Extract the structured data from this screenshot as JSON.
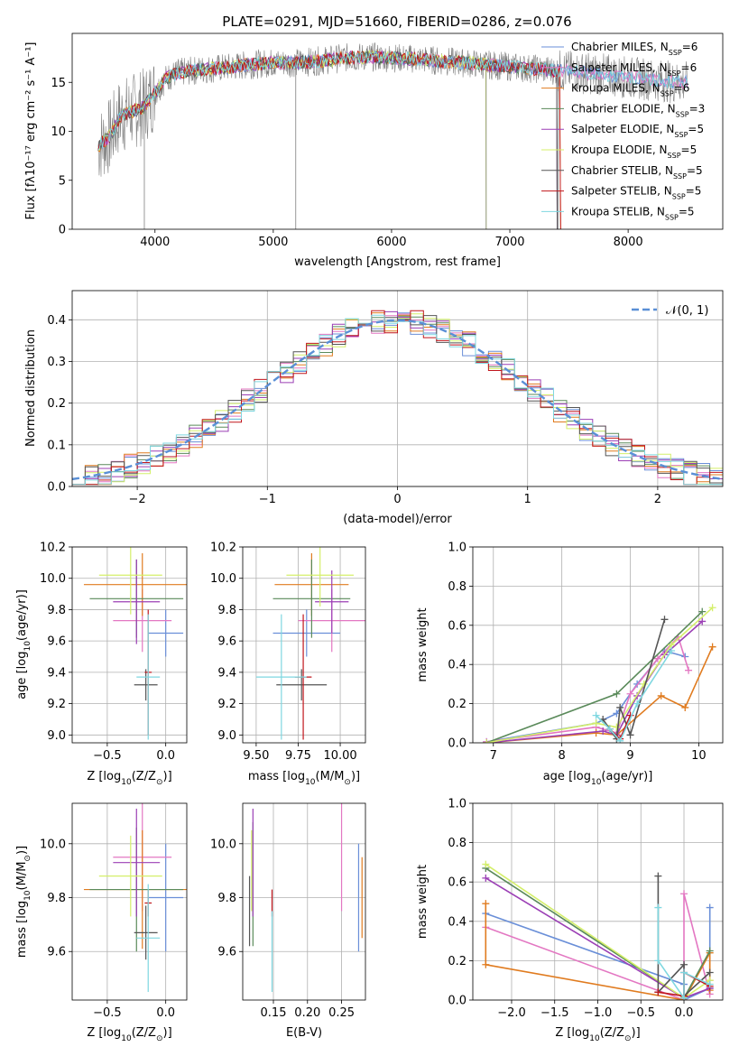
{
  "title": "PLATE=0291, MJD=51660, FIBERID=0286, z=0.076",
  "colors": {
    "chab_miles": "#6a8fd8",
    "salp_miles": "#e377c2",
    "krou_miles": "#e07b1f",
    "chab_elodie": "#5a8a5a",
    "salp_elodie": "#9b3fb5",
    "krou_elodie": "#d4ef6a",
    "chab_stelib": "#555555",
    "salp_stelib": "#c0161c",
    "krou_stelib": "#7fd7e0",
    "gauss": "#5a8fd6",
    "data": "#808080"
  },
  "chart_data": [
    {
      "id": "spectrum",
      "type": "line",
      "xlabel": "wavelength [Angstrom, rest frame]",
      "ylabel": "Flux [fλ10⁻¹⁷ erg cm⁻² s⁻¹ A⁻¹]",
      "xlim": [
        3300,
        8800
      ],
      "ylim": [
        0,
        20
      ],
      "xticks": [
        "4000",
        "5000",
        "6000",
        "7000",
        "8000"
      ],
      "yticks": [
        "0",
        "5",
        "10",
        "15"
      ],
      "legend": [
        "Chabrier MILES, N_SSP=6",
        "Salpeter MILES, N_SSP=6",
        "Kroupa MILES, N_SSP=6",
        "Chabrier ELODIE, N_SSP=3",
        "Salpeter ELODIE, N_SSP=5",
        "Kroupa ELODIE, N_SSP=5",
        "Chabrier STELIB, N_SSP=5",
        "Salpeter STELIB, N_SSP=5",
        "Kroupa STELIB, N_SSP=5"
      ],
      "legend_display": [
        {
          "pre": "Chabrier MILES, N",
          "sub": "SSP",
          "post": "=6"
        },
        {
          "pre": "Salpeter MILES, N",
          "sub": "SSP",
          "post": "=6"
        },
        {
          "pre": "Kroupa MILES, N",
          "sub": "SSP",
          "post": "=6"
        },
        {
          "pre": "Chabrier ELODIE, N",
          "sub": "SSP",
          "post": "=3"
        },
        {
          "pre": "Salpeter ELODIE, N",
          "sub": "SSP",
          "post": "=5"
        },
        {
          "pre": "Kroupa ELODIE, N",
          "sub": "SSP",
          "post": "=5"
        },
        {
          "pre": "Chabrier STELIB, N",
          "sub": "SSP",
          "post": "=5"
        },
        {
          "pre": "Salpeter STELIB, N",
          "sub": "SSP",
          "post": "=5"
        },
        {
          "pre": "Kroupa STELIB, N",
          "sub": "SSP",
          "post": "=5"
        }
      ],
      "legend_position": "right",
      "continuum": [
        [
          3520,
          8.5
        ],
        [
          3620,
          9.5
        ],
        [
          3700,
          11.5
        ],
        [
          3800,
          12.0
        ],
        [
          3900,
          12.5
        ],
        [
          4000,
          14.0
        ],
        [
          4100,
          15.5
        ],
        [
          4200,
          16.0
        ],
        [
          4400,
          16.3
        ],
        [
          4600,
          16.5
        ],
        [
          4800,
          16.8
        ],
        [
          5000,
          17.0
        ],
        [
          5200,
          17.0
        ],
        [
          5400,
          17.2
        ],
        [
          5600,
          17.5
        ],
        [
          5800,
          17.6
        ],
        [
          6000,
          17.5
        ],
        [
          6200,
          17.4
        ],
        [
          6400,
          17.2
        ],
        [
          6600,
          17.0
        ],
        [
          6800,
          16.8
        ],
        [
          7000,
          16.6
        ],
        [
          7200,
          16.4
        ],
        [
          7400,
          16.2
        ],
        [
          7600,
          16.0
        ],
        [
          7800,
          15.8
        ],
        [
          8000,
          15.5
        ],
        [
          8200,
          15.3
        ],
        [
          8400,
          15.0
        ],
        [
          8500,
          15.0
        ]
      ]
    },
    {
      "id": "residuals",
      "type": "line",
      "xlabel": "(data-model)/error",
      "ylabel": "Normed distribution",
      "xlim": [
        -2.5,
        2.5
      ],
      "ylim": [
        0,
        0.47
      ],
      "xticks": [
        -2,
        -1,
        0,
        1,
        2
      ],
      "xtick_labels": [
        "−2",
        "−1",
        "0",
        "1",
        "2"
      ],
      "yticks": [
        0.0,
        0.1,
        0.2,
        0.3,
        0.4
      ],
      "ytick_labels": [
        "0.0",
        "0.1",
        "0.2",
        "0.3",
        "0.4"
      ],
      "grid": true,
      "legend": [
        "𝒩(0, 1)"
      ],
      "legend_position": "top-right"
    },
    {
      "id": "age_vs_Z",
      "type": "scatter",
      "xlabel_parts": [
        "Z [log",
        "10",
        "(Z/Z",
        "⊙",
        ")]"
      ],
      "ylabel_parts": [
        "age  [log",
        "10",
        "(age/yr)]"
      ],
      "xlim": [
        -0.8,
        0.18
      ],
      "ylim": [
        8.95,
        10.2
      ],
      "xticks": [
        -0.5,
        0.0
      ],
      "xtick_labels": [
        "−0.5",
        "0.0"
      ],
      "yticks": [
        9.0,
        9.2,
        9.4,
        9.6,
        9.8,
        10.0,
        10.2
      ],
      "ytick_labels": [
        "9.0",
        "9.2",
        "9.4",
        "9.6",
        "9.8",
        "10.0",
        "10.2"
      ],
      "grid": true,
      "points": [
        {
          "c": "chab_miles",
          "x": 0.0,
          "y": 9.65,
          "xe": 0.15,
          "ye": 0.15
        },
        {
          "c": "salp_miles",
          "x": -0.2,
          "y": 9.73,
          "xe": 0.25,
          "ye": 0.2
        },
        {
          "c": "krou_miles",
          "x": -0.2,
          "y": 9.96,
          "xe": 0.5,
          "ye": 0.2
        },
        {
          "c": "chab_elodie",
          "x": -0.25,
          "y": 9.87,
          "xe": 0.4,
          "ye": 0.25
        },
        {
          "c": "salp_elodie",
          "x": -0.25,
          "y": 9.85,
          "xe": 0.2,
          "ye": 0.27
        },
        {
          "c": "krou_elodie",
          "x": -0.3,
          "y": 10.02,
          "xe": 0.27,
          "ye": 0.25
        },
        {
          "c": "chab_stelib",
          "x": -0.17,
          "y": 9.32,
          "xe": 0.1,
          "ye": 0.1
        },
        {
          "c": "salp_stelib",
          "x": -0.15,
          "y": 9.4,
          "xe": 0.03,
          "ye": 0.4
        },
        {
          "c": "krou_stelib",
          "x": -0.15,
          "y": 9.37,
          "xe": 0.1,
          "ye": 0.4
        }
      ]
    },
    {
      "id": "age_vs_mass",
      "type": "scatter",
      "xlabel_parts": [
        "mass [log",
        "10",
        "(M/M",
        "⊙",
        ")]"
      ],
      "xlim": [
        9.42,
        10.15
      ],
      "ylim": [
        8.95,
        10.2
      ],
      "xticks": [
        9.5,
        9.75,
        10.0
      ],
      "xtick_labels": [
        "9.50",
        "9.75",
        "10.00"
      ],
      "yticks": [
        9.0,
        9.2,
        9.4,
        9.6,
        9.8,
        10.0,
        10.2
      ],
      "ytick_labels": [
        "9.0",
        "9.2",
        "9.4",
        "9.6",
        "9.8",
        "10.0",
        "10.2"
      ],
      "grid": true,
      "points": [
        {
          "c": "chab_miles",
          "x": 9.8,
          "y": 9.65,
          "xe": 0.2,
          "ye": 0.15
        },
        {
          "c": "salp_miles",
          "x": 9.95,
          "y": 9.73,
          "xe": 0.2,
          "ye": 0.2
        },
        {
          "c": "krou_miles",
          "x": 9.83,
          "y": 9.96,
          "xe": 0.22,
          "ye": 0.2
        },
        {
          "c": "chab_elodie",
          "x": 9.83,
          "y": 9.87,
          "xe": 0.23,
          "ye": 0.25
        },
        {
          "c": "salp_elodie",
          "x": 9.95,
          "y": 9.85,
          "xe": 0.1,
          "ye": 0.2
        },
        {
          "c": "krou_elodie",
          "x": 9.88,
          "y": 10.02,
          "xe": 0.2,
          "ye": 0.2
        },
        {
          "c": "chab_stelib",
          "x": 9.77,
          "y": 9.32,
          "xe": 0.15,
          "ye": 0.1
        },
        {
          "c": "salp_stelib",
          "x": 9.78,
          "y": 9.37,
          "xe": 0.05,
          "ye": 0.4
        },
        {
          "c": "krou_stelib",
          "x": 9.65,
          "y": 9.37,
          "xe": 0.15,
          "ye": 0.4
        }
      ]
    },
    {
      "id": "mw_vs_age",
      "type": "line",
      "xlabel_parts": [
        "age  [log",
        "10",
        "(age/yr)]"
      ],
      "ylabel": "mass weight",
      "xlim": [
        6.7,
        10.35
      ],
      "ylim": [
        0,
        1
      ],
      "xticks": [
        7,
        8,
        9,
        10
      ],
      "xtick_labels": [
        "7",
        "8",
        "9",
        "10"
      ],
      "yticks": [
        0,
        0.2,
        0.4,
        0.6,
        0.8,
        1.0
      ],
      "ytick_labels": [
        "0.0",
        "0.2",
        "0.4",
        "0.6",
        "0.8",
        "1.0"
      ],
      "grid": true,
      "series": [
        {
          "c": "chab_miles",
          "x": [
            6.9,
            8.5,
            8.8,
            9.1,
            9.5,
            9.8
          ],
          "y": [
            0.005,
            0.1,
            0.15,
            0.3,
            0.47,
            0.44
          ]
        },
        {
          "c": "salp_miles",
          "x": [
            6.9,
            8.5,
            8.8,
            9.0,
            9.4,
            9.7,
            9.85
          ],
          "y": [
            0.005,
            0.08,
            0.05,
            0.25,
            0.43,
            0.54,
            0.37
          ]
        },
        {
          "c": "krou_miles",
          "x": [
            6.9,
            8.5,
            8.8,
            9.45,
            9.8,
            10.2
          ],
          "y": [
            0.0,
            0.05,
            0.04,
            0.24,
            0.18,
            0.49
          ]
        },
        {
          "c": "chab_elodie",
          "x": [
            6.9,
            8.8,
            10.05
          ],
          "y": [
            0.0,
            0.25,
            0.67
          ]
        },
        {
          "c": "salp_elodie",
          "x": [
            6.9,
            8.6,
            8.8,
            9.1,
            9.5,
            10.05
          ],
          "y": [
            0.0,
            0.06,
            0.04,
            0.24,
            0.45,
            0.62
          ]
        },
        {
          "c": "krou_elodie",
          "x": [
            6.9,
            8.5,
            8.8,
            9.2,
            9.6,
            10.2
          ],
          "y": [
            0.0,
            0.1,
            0.08,
            0.3,
            0.5,
            0.69
          ]
        },
        {
          "c": "chab_stelib",
          "x": [
            8.6,
            8.8,
            8.85,
            9.0,
            9.5
          ],
          "y": [
            0.12,
            0.02,
            0.18,
            0.04,
            0.63
          ]
        },
        {
          "c": "salp_stelib",
          "x": [
            8.7,
            8.85,
            9.0
          ],
          "y": [
            0.07,
            0.02,
            0.14
          ]
        },
        {
          "c": "krou_stelib",
          "x": [
            8.5,
            8.7,
            8.85,
            9.1,
            9.6
          ],
          "y": [
            0.14,
            0.07,
            0.01,
            0.2,
            0.47
          ]
        }
      ]
    },
    {
      "id": "mass_vs_Z",
      "type": "scatter",
      "xlabel_parts": [
        "Z [log",
        "10",
        "(Z/Z",
        "⊙",
        ")]"
      ],
      "ylabel_parts": [
        "mass [log",
        "10",
        "(M/M",
        "⊙",
        ")]"
      ],
      "xlim": [
        -0.8,
        0.18
      ],
      "ylim": [
        9.42,
        10.15
      ],
      "xticks": [
        -0.5,
        0.0
      ],
      "xtick_labels": [
        "−0.5",
        "0.0"
      ],
      "yticks": [
        9.6,
        9.8,
        10.0
      ],
      "ytick_labels": [
        "9.6",
        "9.8",
        "10.0"
      ],
      "grid": true,
      "points": [
        {
          "c": "chab_miles",
          "x": 0.0,
          "y": 9.8,
          "xe": 0.15,
          "ye": 0.2
        },
        {
          "c": "salp_miles",
          "x": -0.2,
          "y": 9.95,
          "xe": 0.25,
          "ye": 0.2
        },
        {
          "c": "krou_miles",
          "x": -0.2,
          "y": 9.83,
          "xe": 0.5,
          "ye": 0.22
        },
        {
          "c": "chab_elodie",
          "x": -0.25,
          "y": 9.83,
          "xe": 0.4,
          "ye": 0.23
        },
        {
          "c": "salp_elodie",
          "x": -0.25,
          "y": 9.93,
          "xe": 0.2,
          "ye": 0.2
        },
        {
          "c": "krou_elodie",
          "x": -0.3,
          "y": 9.88,
          "xe": 0.27,
          "ye": 0.15
        },
        {
          "c": "chab_stelib",
          "x": -0.17,
          "y": 9.67,
          "xe": 0.1,
          "ye": 0.1
        },
        {
          "c": "salp_stelib",
          "x": -0.15,
          "y": 9.78,
          "xe": 0.03,
          "ye": 0.05
        },
        {
          "c": "krou_stelib",
          "x": -0.15,
          "y": 9.65,
          "xe": 0.1,
          "ye": 0.2
        }
      ]
    },
    {
      "id": "mass_vs_EBV",
      "type": "scatter",
      "xlabel": "E(B-V)",
      "xlim": [
        0.105,
        0.285
      ],
      "ylim": [
        9.42,
        10.15
      ],
      "xticks": [
        0.15,
        0.2,
        0.25
      ],
      "xtick_labels": [
        "0.15",
        "0.20",
        "0.25"
      ],
      "yticks": [
        9.6,
        9.8,
        10.0
      ],
      "ytick_labels": [
        "9.6",
        "9.8",
        "10.0"
      ],
      "grid": true,
      "points": [
        {
          "c": "chab_miles",
          "x": 0.275,
          "y": 9.8,
          "xe": 0,
          "ye": 0.2
        },
        {
          "c": "salp_miles",
          "x": 0.25,
          "y": 9.95,
          "xe": 0,
          "ye": 0.2
        },
        {
          "c": "krou_miles",
          "x": 0.28,
          "y": 9.8,
          "xe": 0,
          "ye": 0.15
        },
        {
          "c": "chab_elodie",
          "x": 0.12,
          "y": 9.85,
          "xe": 0,
          "ye": 0.23
        },
        {
          "c": "salp_elodie",
          "x": 0.12,
          "y": 9.93,
          "xe": 0,
          "ye": 0.2
        },
        {
          "c": "krou_elodie",
          "x": 0.118,
          "y": 9.9,
          "xe": 0,
          "ye": 0.15
        },
        {
          "c": "chab_stelib",
          "x": 0.115,
          "y": 9.75,
          "xe": 0,
          "ye": 0.13
        },
        {
          "c": "salp_stelib",
          "x": 0.148,
          "y": 9.78,
          "xe": 0,
          "ye": 0.05
        },
        {
          "c": "krou_stelib",
          "x": 0.148,
          "y": 9.6,
          "xe": 0,
          "ye": 0.15
        }
      ]
    },
    {
      "id": "mw_vs_Z",
      "type": "line",
      "xlabel_parts": [
        "Z [log",
        "10",
        "(Z/Z",
        "⊙",
        ")]"
      ],
      "ylabel": "mass weight",
      "xlim": [
        -2.45,
        0.45
      ],
      "ylim": [
        0,
        1
      ],
      "xticks": [
        -2.0,
        -1.5,
        -1.0,
        -0.5,
        0.0
      ],
      "xtick_labels": [
        "−2.0",
        "−1.5",
        "−1.0",
        "−0.5",
        "0.0"
      ],
      "yticks": [
        0,
        0.2,
        0.4,
        0.6,
        0.8,
        1.0
      ],
      "ytick_labels": [
        "0.0",
        "0.2",
        "0.4",
        "0.6",
        "0.8",
        "1.0"
      ],
      "grid": true,
      "series": [
        {
          "c": "chab_miles",
          "x": [
            -2.3,
            0.0,
            0.0,
            0.3,
            0.3
          ],
          "y": [
            0.44,
            0.08,
            0.0,
            0.06,
            0.47
          ]
        },
        {
          "c": "salp_miles",
          "x": [
            -2.3,
            0.0,
            0.0,
            0.3,
            0.3
          ],
          "y": [
            0.37,
            0.0,
            0.54,
            0.03,
            0.1
          ]
        },
        {
          "c": "krou_miles",
          "x": [
            -2.3,
            -2.3,
            0.0,
            0.3,
            0.3
          ],
          "y": [
            0.49,
            0.18,
            0.0,
            0.24,
            0.05
          ]
        },
        {
          "c": "chab_elodie",
          "x": [
            -2.3,
            0.0,
            0.3
          ],
          "y": [
            0.67,
            0.01,
            0.25
          ]
        },
        {
          "c": "salp_elodie",
          "x": [
            -2.3,
            0.0,
            0.3
          ],
          "y": [
            0.62,
            0.01,
            0.06
          ]
        },
        {
          "c": "krou_elodie",
          "x": [
            -2.3,
            0.0,
            0.3
          ],
          "y": [
            0.69,
            0.01,
            0.1
          ]
        },
        {
          "c": "chab_stelib",
          "x": [
            -0.3,
            -0.3,
            0.0,
            0.0,
            0.3
          ],
          "y": [
            0.63,
            0.04,
            0.18,
            0.02,
            0.14
          ]
        },
        {
          "c": "salp_stelib",
          "x": [
            -0.3,
            0.0,
            0.0,
            0.3
          ],
          "y": [
            0.04,
            0.02,
            0.14,
            0.07
          ]
        },
        {
          "c": "krou_stelib",
          "x": [
            -0.3,
            -0.3,
            0.0,
            0.0,
            0.3
          ],
          "y": [
            0.47,
            0.2,
            0.01,
            0.14,
            0.08
          ]
        }
      ]
    }
  ]
}
